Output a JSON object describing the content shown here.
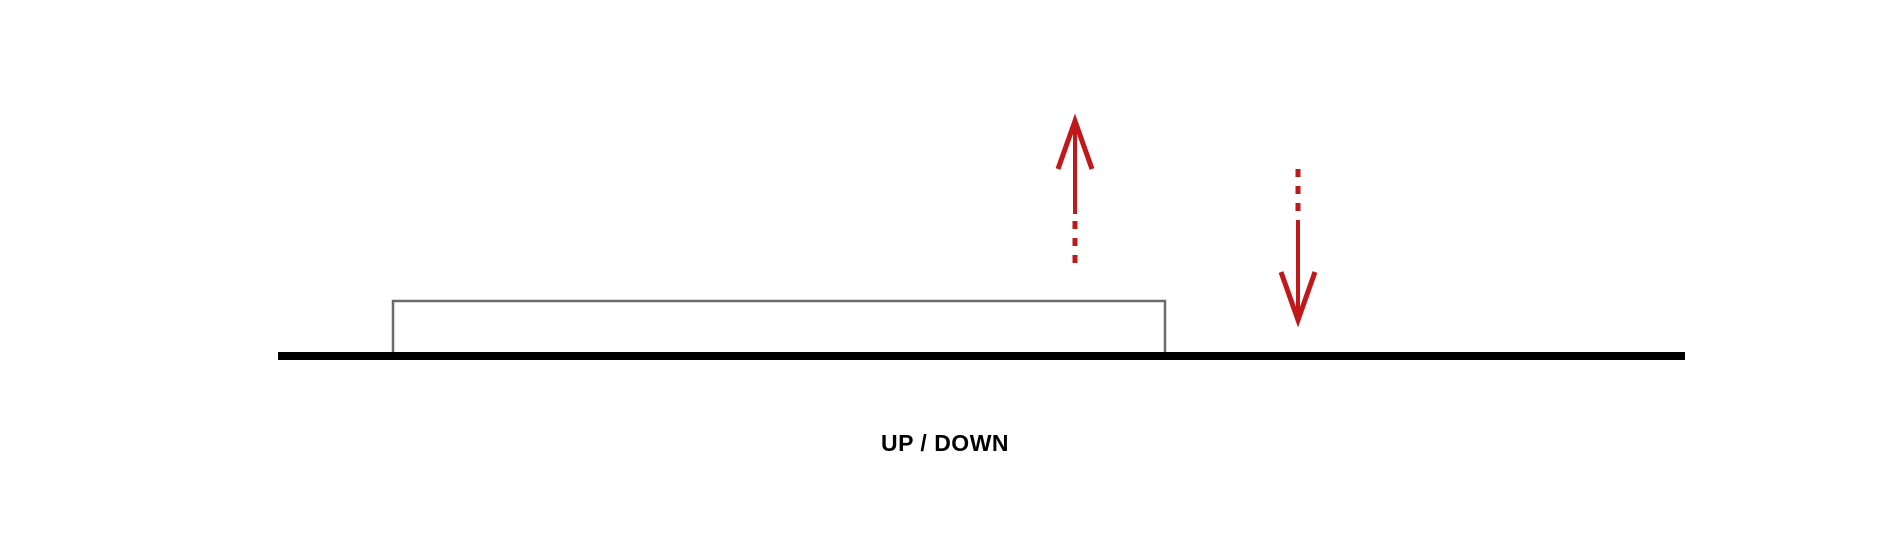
{
  "caption": "UP / DOWN",
  "colors": {
    "ground": "#000000",
    "platform": "#6b6b6b",
    "arrow": "#c0181b",
    "background": "#ffffff"
  },
  "arrows": [
    {
      "name": "up-arrow",
      "direction": "up"
    },
    {
      "name": "down-arrow",
      "direction": "down"
    }
  ]
}
